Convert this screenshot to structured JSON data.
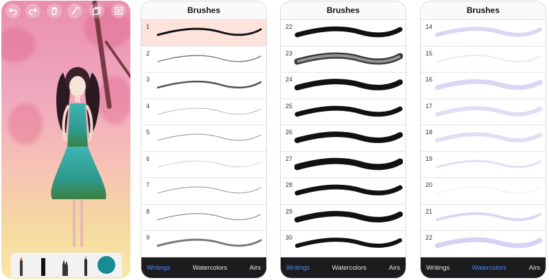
{
  "canvas_screen": {
    "toolbar_icons": [
      "undo-icon",
      "redo-icon",
      "trash-icon",
      "magic-wand-icon",
      "copy-icon",
      "layers-icon"
    ],
    "tools": [
      "marker-tool",
      "pen-tool",
      "hand-tool",
      "pencil-tool"
    ],
    "selected_color": "#178c92"
  },
  "brush_panels": [
    {
      "title": "Brushes",
      "style": "writing",
      "rows": [
        {
          "num": "1",
          "selected": true
        },
        {
          "num": "2"
        },
        {
          "num": "3"
        },
        {
          "num": "4"
        },
        {
          "num": "5"
        },
        {
          "num": "6"
        },
        {
          "num": "7"
        },
        {
          "num": "8"
        },
        {
          "num": "9"
        }
      ],
      "tabs": [
        {
          "label": "Writings",
          "active": true
        },
        {
          "label": "Watercolors",
          "active": false
        },
        {
          "label": "Airs",
          "active": false
        }
      ]
    },
    {
      "title": "Brushes",
      "style": "ink",
      "rows": [
        {
          "num": "22"
        },
        {
          "num": "23"
        },
        {
          "num": "24"
        },
        {
          "num": "25"
        },
        {
          "num": "26"
        },
        {
          "num": "27"
        },
        {
          "num": "28"
        },
        {
          "num": "29"
        },
        {
          "num": "30"
        }
      ],
      "tabs": [
        {
          "label": "Writings",
          "active": true
        },
        {
          "label": "Watercolors",
          "active": false
        },
        {
          "label": "Airs",
          "active": false
        }
      ]
    },
    {
      "title": "Brushes",
      "style": "watercolor",
      "rows": [
        {
          "num": "14"
        },
        {
          "num": "15"
        },
        {
          "num": "16"
        },
        {
          "num": "17"
        },
        {
          "num": "18"
        },
        {
          "num": "19"
        },
        {
          "num": "20"
        },
        {
          "num": "21"
        },
        {
          "num": "22"
        }
      ],
      "tabs": [
        {
          "label": "Writings",
          "active": false
        },
        {
          "label": "Watercolors",
          "active": true
        },
        {
          "label": "Airs",
          "active": false
        }
      ]
    }
  ]
}
